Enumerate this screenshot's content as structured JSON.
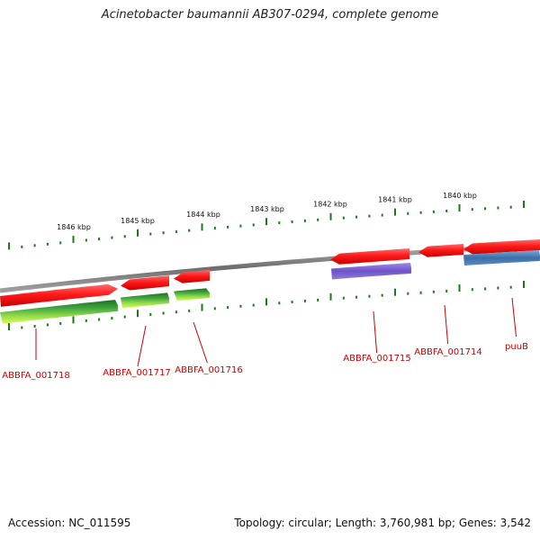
{
  "title": "Acinetobacter baumannii AB307-0294, complete genome",
  "footer": {
    "accession": "Accession: NC_011595",
    "summary": "Topology: circular; Length: 3,760,981 bp; Genes: 3,542"
  },
  "scale_labels": [
    "1846 kbp",
    "1845 kbp",
    "1844 kbp",
    "1843 kbp",
    "1842 kbp",
    "1841 kbp",
    "1840 kbp"
  ],
  "gene_labels": [
    "ABBFA_001718",
    "ABBFA_001717",
    "ABBFA_001716",
    "ABBFA_001715",
    "ABBFA_001714",
    "puuB"
  ],
  "colors": {
    "gene_red": "#ff1a1a",
    "backbone": "#8c8c8c",
    "tick_green": "#1a7a1a",
    "purple": "#7a5fd0",
    "steel_blue": "#4a80b8",
    "green_dark": "#2e8b2e",
    "green_light": "#b6f03c",
    "label_red": "#cc0000"
  }
}
